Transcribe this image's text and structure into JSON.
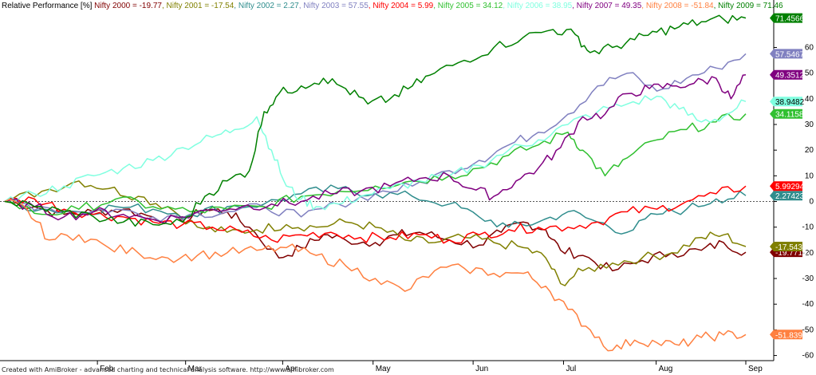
{
  "chart_data": {
    "type": "line",
    "title": "Relative Performance [%]",
    "ylabel": "",
    "xlabel": "",
    "ylim": [
      -62,
      76
    ],
    "yticks": [
      -60,
      -50,
      -40,
      -30,
      -20,
      -10,
      0,
      10,
      20,
      30,
      40,
      50,
      60
    ],
    "xlim": [
      0,
      1
    ],
    "month_ticks": [
      {
        "label": "Feb",
        "x": 0.125
      },
      {
        "label": "Mar",
        "x": 0.244
      },
      {
        "label": "Apr",
        "x": 0.375
      },
      {
        "label": "May",
        "x": 0.497
      },
      {
        "label": "Jun",
        "x": 0.632
      },
      {
        "label": "Jul",
        "x": 0.754
      },
      {
        "label": "Aug",
        "x": 0.879
      },
      {
        "label": "Sep",
        "x": 1.0
      }
    ],
    "zero_line": true,
    "grid": false,
    "series": [
      {
        "name": "Nifty 2000",
        "color": "#800000",
        "final": -19.77,
        "label": "-19.7714",
        "points": [
          [
            0,
            0
          ],
          [
            0.04,
            -2
          ],
          [
            0.08,
            -5
          ],
          [
            0.12,
            -4
          ],
          [
            0.16,
            -3
          ],
          [
            0.2,
            -6
          ],
          [
            0.24,
            -8
          ],
          [
            0.27,
            -3
          ],
          [
            0.3,
            -4
          ],
          [
            0.33,
            -10
          ],
          [
            0.37,
            -22
          ],
          [
            0.4,
            -18
          ],
          [
            0.43,
            -13
          ],
          [
            0.46,
            -15
          ],
          [
            0.5,
            -16
          ],
          [
            0.53,
            -13
          ],
          [
            0.56,
            -12
          ],
          [
            0.6,
            -15
          ],
          [
            0.64,
            -17
          ],
          [
            0.67,
            -12
          ],
          [
            0.7,
            -8
          ],
          [
            0.73,
            -11
          ],
          [
            0.75,
            -19
          ],
          [
            0.78,
            -21
          ],
          [
            0.82,
            -27
          ],
          [
            0.86,
            -23
          ],
          [
            0.9,
            -20
          ],
          [
            0.94,
            -19
          ],
          [
            0.97,
            -16
          ],
          [
            1.0,
            -19.77
          ]
        ]
      },
      {
        "name": "Nifty 2001",
        "color": "#808000",
        "final": -17.54,
        "label": "-17.5437",
        "points": [
          [
            0,
            0
          ],
          [
            0.05,
            4
          ],
          [
            0.1,
            8
          ],
          [
            0.14,
            5
          ],
          [
            0.18,
            2
          ],
          [
            0.22,
            -2
          ],
          [
            0.26,
            -10
          ],
          [
            0.3,
            -12
          ],
          [
            0.34,
            -11
          ],
          [
            0.38,
            -9
          ],
          [
            0.42,
            -10
          ],
          [
            0.46,
            -8
          ],
          [
            0.5,
            -10
          ],
          [
            0.54,
            -15
          ],
          [
            0.58,
            -16
          ],
          [
            0.62,
            -14
          ],
          [
            0.66,
            -16
          ],
          [
            0.7,
            -18
          ],
          [
            0.73,
            -22
          ],
          [
            0.75,
            -32
          ],
          [
            0.78,
            -27
          ],
          [
            0.82,
            -24
          ],
          [
            0.86,
            -22
          ],
          [
            0.9,
            -20
          ],
          [
            0.94,
            -14
          ],
          [
            0.97,
            -13
          ],
          [
            1.0,
            -17.54
          ]
        ]
      },
      {
        "name": "Nifty 2002",
        "color": "#2f8d8d",
        "final": 2.27,
        "label": "2.27423",
        "points": [
          [
            0,
            0
          ],
          [
            0.05,
            -3
          ],
          [
            0.1,
            -4
          ],
          [
            0.15,
            -2
          ],
          [
            0.2,
            -3
          ],
          [
            0.25,
            -5
          ],
          [
            0.3,
            -2
          ],
          [
            0.35,
            -1
          ],
          [
            0.4,
            3
          ],
          [
            0.45,
            5
          ],
          [
            0.5,
            3
          ],
          [
            0.55,
            2
          ],
          [
            0.6,
            -1
          ],
          [
            0.64,
            -6
          ],
          [
            0.68,
            -10
          ],
          [
            0.72,
            -8
          ],
          [
            0.76,
            -4
          ],
          [
            0.8,
            -8
          ],
          [
            0.84,
            -12
          ],
          [
            0.88,
            -5
          ],
          [
            0.92,
            -3
          ],
          [
            0.96,
            1
          ],
          [
            1.0,
            2.27
          ]
        ]
      },
      {
        "name": "Nifty 2003",
        "color": "#8080c0",
        "final": 57.55,
        "label": "57.5467",
        "points": [
          [
            0,
            0
          ],
          [
            0.05,
            -2
          ],
          [
            0.1,
            -4
          ],
          [
            0.15,
            -3
          ],
          [
            0.2,
            -6
          ],
          [
            0.25,
            -5
          ],
          [
            0.3,
            -4
          ],
          [
            0.35,
            -2
          ],
          [
            0.4,
            -6
          ],
          [
            0.45,
            -1
          ],
          [
            0.5,
            3
          ],
          [
            0.55,
            6
          ],
          [
            0.6,
            12
          ],
          [
            0.64,
            16
          ],
          [
            0.68,
            22
          ],
          [
            0.72,
            27
          ],
          [
            0.76,
            34
          ],
          [
            0.8,
            45
          ],
          [
            0.84,
            50
          ],
          [
            0.88,
            43
          ],
          [
            0.92,
            48
          ],
          [
            0.96,
            52
          ],
          [
            1.0,
            57.55
          ]
        ]
      },
      {
        "name": "Nifty 2004",
        "color": "#ff0000",
        "final": 5.99,
        "label": "5.99294",
        "points": [
          [
            0,
            0
          ],
          [
            0.04,
            1
          ],
          [
            0.08,
            -3
          ],
          [
            0.12,
            -5
          ],
          [
            0.16,
            -6
          ],
          [
            0.2,
            -8
          ],
          [
            0.24,
            -9
          ],
          [
            0.28,
            -10
          ],
          [
            0.32,
            -12
          ],
          [
            0.36,
            -15
          ],
          [
            0.4,
            -13
          ],
          [
            0.44,
            -12
          ],
          [
            0.48,
            -14
          ],
          [
            0.52,
            -14
          ],
          [
            0.56,
            -13
          ],
          [
            0.6,
            -15
          ],
          [
            0.64,
            -13
          ],
          [
            0.68,
            -11
          ],
          [
            0.72,
            -10
          ],
          [
            0.76,
            -10
          ],
          [
            0.8,
            -8
          ],
          [
            0.84,
            -4
          ],
          [
            0.88,
            -3
          ],
          [
            0.92,
            0
          ],
          [
            0.96,
            3
          ],
          [
            1.0,
            5.99
          ]
        ]
      },
      {
        "name": "Nifty 2005",
        "color": "#30c030",
        "final": 34.12,
        "label": "34.1158",
        "points": [
          [
            0,
            0
          ],
          [
            0.05,
            -5
          ],
          [
            0.1,
            -3
          ],
          [
            0.15,
            1
          ],
          [
            0.2,
            -2
          ],
          [
            0.25,
            -4
          ],
          [
            0.3,
            -3
          ],
          [
            0.35,
            -2
          ],
          [
            0.4,
            2
          ],
          [
            0.45,
            4
          ],
          [
            0.5,
            6
          ],
          [
            0.55,
            8
          ],
          [
            0.6,
            10
          ],
          [
            0.64,
            13
          ],
          [
            0.68,
            18
          ],
          [
            0.72,
            22
          ],
          [
            0.76,
            27
          ],
          [
            0.78,
            20
          ],
          [
            0.81,
            10
          ],
          [
            0.84,
            17
          ],
          [
            0.88,
            24
          ],
          [
            0.92,
            28
          ],
          [
            0.96,
            31
          ],
          [
            1.0,
            34.12
          ]
        ]
      },
      {
        "name": "Nifty 2006",
        "color": "#80ffe0",
        "final": 38.95,
        "label": "38.9482",
        "points": [
          [
            0,
            0
          ],
          [
            0.04,
            3
          ],
          [
            0.08,
            6
          ],
          [
            0.12,
            10
          ],
          [
            0.16,
            13
          ],
          [
            0.2,
            16
          ],
          [
            0.24,
            21
          ],
          [
            0.28,
            25
          ],
          [
            0.31,
            28
          ],
          [
            0.34,
            33
          ],
          [
            0.36,
            20
          ],
          [
            0.38,
            6
          ],
          [
            0.4,
            1
          ],
          [
            0.42,
            -2
          ],
          [
            0.45,
            -1
          ],
          [
            0.48,
            2
          ],
          [
            0.52,
            5
          ],
          [
            0.56,
            8
          ],
          [
            0.6,
            10
          ],
          [
            0.64,
            14
          ],
          [
            0.68,
            20
          ],
          [
            0.72,
            24
          ],
          [
            0.76,
            30
          ],
          [
            0.8,
            35
          ],
          [
            0.84,
            38
          ],
          [
            0.88,
            41
          ],
          [
            0.91,
            36
          ],
          [
            0.94,
            31
          ],
          [
            0.97,
            33
          ],
          [
            1.0,
            38.95
          ]
        ]
      },
      {
        "name": "Nifty 2007",
        "color": "#800080",
        "final": 49.35,
        "label": "49.3512",
        "points": [
          [
            0,
            0
          ],
          [
            0.04,
            -2
          ],
          [
            0.08,
            -6
          ],
          [
            0.12,
            -4
          ],
          [
            0.16,
            -5
          ],
          [
            0.2,
            -7
          ],
          [
            0.24,
            -6
          ],
          [
            0.28,
            -3
          ],
          [
            0.32,
            -2
          ],
          [
            0.36,
            -1
          ],
          [
            0.4,
            0
          ],
          [
            0.44,
            3
          ],
          [
            0.48,
            4
          ],
          [
            0.52,
            6
          ],
          [
            0.56,
            9
          ],
          [
            0.6,
            10
          ],
          [
            0.63,
            5
          ],
          [
            0.66,
            2
          ],
          [
            0.69,
            8
          ],
          [
            0.72,
            13
          ],
          [
            0.75,
            21
          ],
          [
            0.78,
            33
          ],
          [
            0.81,
            34
          ],
          [
            0.84,
            42
          ],
          [
            0.87,
            44
          ],
          [
            0.9,
            45
          ],
          [
            0.93,
            46
          ],
          [
            0.96,
            48
          ],
          [
            0.98,
            40
          ],
          [
            1.0,
            49.35
          ]
        ]
      },
      {
        "name": "Nifty 2008",
        "color": "#ff8040",
        "final": -51.84,
        "label": "-51.8395",
        "points": [
          [
            0,
            0
          ],
          [
            0.03,
            -3
          ],
          [
            0.06,
            -15
          ],
          [
            0.1,
            -13
          ],
          [
            0.14,
            -18
          ],
          [
            0.18,
            -20
          ],
          [
            0.22,
            -22
          ],
          [
            0.26,
            -21
          ],
          [
            0.3,
            -20
          ],
          [
            0.34,
            -19
          ],
          [
            0.38,
            -18
          ],
          [
            0.42,
            -21
          ],
          [
            0.46,
            -25
          ],
          [
            0.5,
            -30
          ],
          [
            0.54,
            -35
          ],
          [
            0.58,
            -27
          ],
          [
            0.62,
            -26
          ],
          [
            0.66,
            -28
          ],
          [
            0.7,
            -28
          ],
          [
            0.73,
            -33
          ],
          [
            0.76,
            -42
          ],
          [
            0.79,
            -50
          ],
          [
            0.82,
            -58
          ],
          [
            0.85,
            -54
          ],
          [
            0.88,
            -55
          ],
          [
            0.91,
            -56
          ],
          [
            0.94,
            -53
          ],
          [
            0.97,
            -52
          ],
          [
            1.0,
            -51.84
          ]
        ]
      },
      {
        "name": "Nifty 2009",
        "color": "#008000",
        "final": 71.46,
        "label": "71.4566",
        "points": [
          [
            0,
            0
          ],
          [
            0.04,
            -2
          ],
          [
            0.08,
            -4
          ],
          [
            0.12,
            -6
          ],
          [
            0.16,
            -8
          ],
          [
            0.2,
            -9
          ],
          [
            0.24,
            -8
          ],
          [
            0.27,
            2
          ],
          [
            0.3,
            8
          ],
          [
            0.33,
            12
          ],
          [
            0.35,
            35
          ],
          [
            0.37,
            42
          ],
          [
            0.4,
            45
          ],
          [
            0.43,
            48
          ],
          [
            0.46,
            44
          ],
          [
            0.49,
            38
          ],
          [
            0.52,
            40
          ],
          [
            0.55,
            45
          ],
          [
            0.58,
            50
          ],
          [
            0.62,
            55
          ],
          [
            0.66,
            60
          ],
          [
            0.7,
            64
          ],
          [
            0.74,
            67
          ],
          [
            0.77,
            65
          ],
          [
            0.79,
            58
          ],
          [
            0.82,
            60
          ],
          [
            0.85,
            63
          ],
          [
            0.88,
            66
          ],
          [
            0.91,
            68
          ],
          [
            0.94,
            70
          ],
          [
            0.97,
            71
          ],
          [
            1.0,
            71.46
          ]
        ]
      }
    ]
  },
  "footer": "Created with AmiBroker - advanced charting and technical analysis software. http://www.amibroker.com"
}
